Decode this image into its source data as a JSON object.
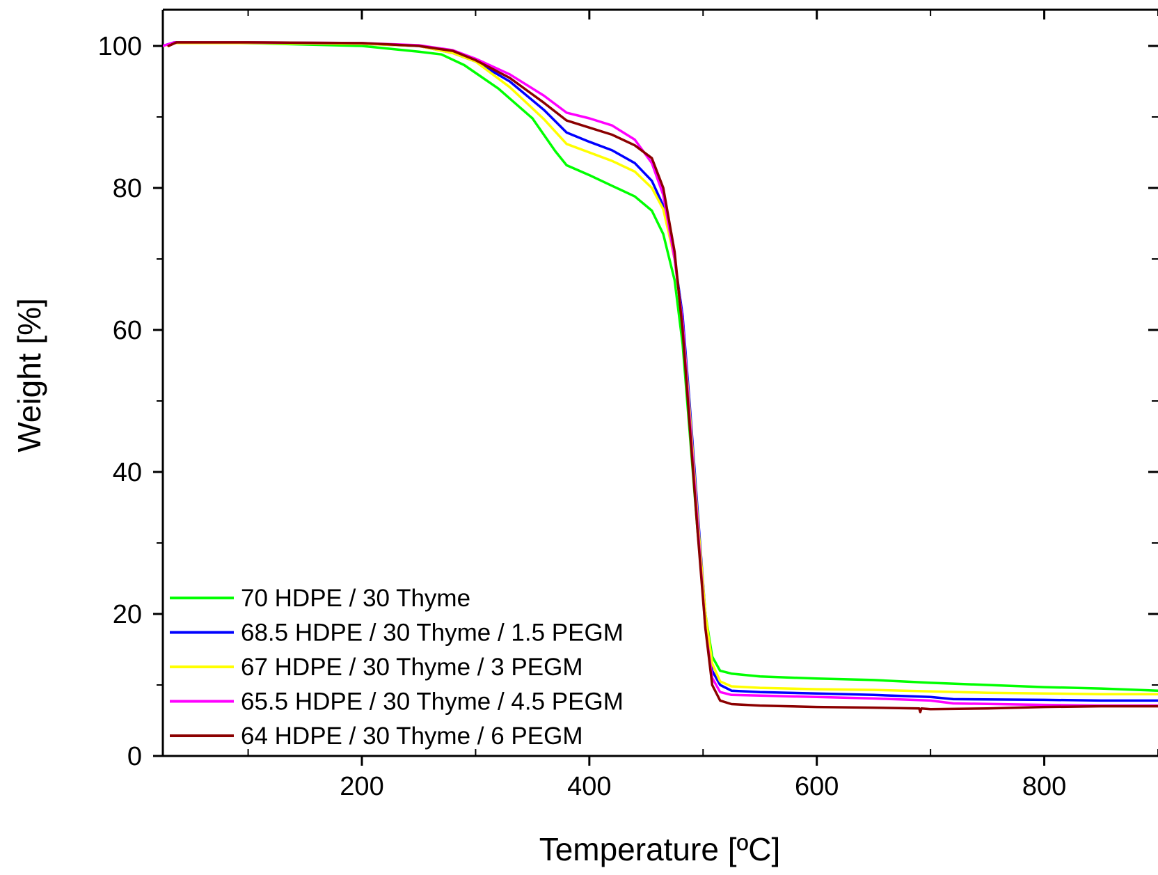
{
  "chart_data": {
    "type": "line",
    "xlabel": "Temperature [ºC]",
    "ylabel": "Weight [%]",
    "xlim": [
      25,
      900
    ],
    "ylim": [
      0,
      100
    ],
    "x_ticks": [
      200,
      400,
      600,
      800
    ],
    "y_ticks": [
      0,
      20,
      40,
      60,
      80,
      100
    ],
    "grid": false,
    "legend_position": "bottom-left",
    "series": [
      {
        "name": "70 HDPE / 30 Thyme",
        "color": "#00ff00",
        "points": [
          [
            25,
            100
          ],
          [
            35,
            100.5
          ],
          [
            100,
            100.4
          ],
          [
            200,
            100
          ],
          [
            250,
            99.2
          ],
          [
            270,
            98.8
          ],
          [
            290,
            97.3
          ],
          [
            320,
            94
          ],
          [
            350,
            89.8
          ],
          [
            370,
            85.2
          ],
          [
            380,
            83.2
          ],
          [
            400,
            81.8
          ],
          [
            420,
            80.3
          ],
          [
            440,
            78.8
          ],
          [
            455,
            76.8
          ],
          [
            465,
            73.5
          ],
          [
            475,
            67
          ],
          [
            482,
            58
          ],
          [
            488,
            46
          ],
          [
            495,
            32
          ],
          [
            502,
            20
          ],
          [
            508,
            14
          ],
          [
            515,
            12
          ],
          [
            525,
            11.6
          ],
          [
            550,
            11.2
          ],
          [
            600,
            10.9
          ],
          [
            650,
            10.7
          ],
          [
            700,
            10.3
          ],
          [
            750,
            10
          ],
          [
            800,
            9.7
          ],
          [
            850,
            9.5
          ],
          [
            900,
            9.2
          ]
        ]
      },
      {
        "name": "68.5 HDPE / 30 Thyme / 1.5 PEGM",
        "color": "#0000ff",
        "points": [
          [
            25,
            100
          ],
          [
            35,
            100.5
          ],
          [
            100,
            100.4
          ],
          [
            200,
            100.3
          ],
          [
            250,
            100
          ],
          [
            280,
            99
          ],
          [
            300,
            97.8
          ],
          [
            330,
            95
          ],
          [
            360,
            91
          ],
          [
            380,
            87.8
          ],
          [
            400,
            86.5
          ],
          [
            420,
            85.3
          ],
          [
            440,
            83.5
          ],
          [
            455,
            81
          ],
          [
            465,
            77.5
          ],
          [
            475,
            70
          ],
          [
            482,
            62
          ],
          [
            488,
            50
          ],
          [
            495,
            35
          ],
          [
            502,
            20
          ],
          [
            508,
            12
          ],
          [
            515,
            10
          ],
          [
            525,
            9.2
          ],
          [
            550,
            9
          ],
          [
            600,
            8.8
          ],
          [
            650,
            8.6
          ],
          [
            700,
            8.3
          ],
          [
            720,
            8
          ],
          [
            800,
            7.9
          ],
          [
            850,
            7.8
          ],
          [
            900,
            7.8
          ]
        ]
      },
      {
        "name": "67 HDPE / 30 Thyme / 3 PEGM",
        "color": "#ffff00",
        "points": [
          [
            25,
            100
          ],
          [
            35,
            100.4
          ],
          [
            100,
            100.4
          ],
          [
            200,
            100.3
          ],
          [
            250,
            100
          ],
          [
            280,
            99
          ],
          [
            300,
            97.8
          ],
          [
            330,
            94.2
          ],
          [
            360,
            89.7
          ],
          [
            380,
            86.2
          ],
          [
            400,
            85
          ],
          [
            420,
            83.8
          ],
          [
            440,
            82.3
          ],
          [
            455,
            80
          ],
          [
            465,
            77
          ],
          [
            475,
            70
          ],
          [
            482,
            61
          ],
          [
            488,
            49
          ],
          [
            495,
            34
          ],
          [
            502,
            20
          ],
          [
            508,
            13
          ],
          [
            515,
            10.5
          ],
          [
            525,
            9.8
          ],
          [
            550,
            9.6
          ],
          [
            600,
            9.4
          ],
          [
            650,
            9.3
          ],
          [
            700,
            9.1
          ],
          [
            750,
            8.9
          ],
          [
            800,
            8.8
          ],
          [
            850,
            8.7
          ],
          [
            900,
            8.7
          ]
        ]
      },
      {
        "name": "65.5 HDPE / 30 Thyme / 4.5 PEGM",
        "color": "#ff00ff",
        "points": [
          [
            25,
            100
          ],
          [
            35,
            100.5
          ],
          [
            100,
            100.5
          ],
          [
            200,
            100.4
          ],
          [
            250,
            100.1
          ],
          [
            280,
            99.4
          ],
          [
            300,
            98.2
          ],
          [
            330,
            96
          ],
          [
            360,
            93
          ],
          [
            380,
            90.6
          ],
          [
            400,
            89.8
          ],
          [
            420,
            88.8
          ],
          [
            440,
            86.8
          ],
          [
            455,
            83.5
          ],
          [
            465,
            79
          ],
          [
            475,
            70
          ],
          [
            482,
            61
          ],
          [
            488,
            48
          ],
          [
            495,
            33
          ],
          [
            502,
            18
          ],
          [
            508,
            11
          ],
          [
            515,
            9
          ],
          [
            525,
            8.6
          ],
          [
            550,
            8.5
          ],
          [
            600,
            8.3
          ],
          [
            650,
            8.1
          ],
          [
            700,
            7.8
          ],
          [
            720,
            7.4
          ],
          [
            800,
            7.2
          ],
          [
            850,
            7.1
          ],
          [
            900,
            7.1
          ]
        ]
      },
      {
        "name": "64 HDPE / 30 Thyme / 6 PEGM",
        "color": "#8b0000",
        "points": [
          [
            30,
            100
          ],
          [
            37,
            100.5
          ],
          [
            100,
            100.5
          ],
          [
            200,
            100.4
          ],
          [
            250,
            100
          ],
          [
            280,
            99.3
          ],
          [
            300,
            98
          ],
          [
            330,
            95.5
          ],
          [
            360,
            92
          ],
          [
            380,
            89.5
          ],
          [
            400,
            88.5
          ],
          [
            420,
            87.5
          ],
          [
            440,
            86
          ],
          [
            455,
            84.2
          ],
          [
            465,
            80
          ],
          [
            475,
            71
          ],
          [
            482,
            60
          ],
          [
            488,
            47
          ],
          [
            495,
            32
          ],
          [
            502,
            18
          ],
          [
            508,
            10
          ],
          [
            515,
            7.8
          ],
          [
            525,
            7.3
          ],
          [
            550,
            7.1
          ],
          [
            600,
            6.9
          ],
          [
            650,
            6.8
          ],
          [
            690,
            6.7
          ],
          [
            691,
            6.2
          ],
          [
            692,
            6.7
          ],
          [
            700,
            6.6
          ],
          [
            750,
            6.7
          ],
          [
            800,
            6.9
          ],
          [
            850,
            7
          ],
          [
            900,
            7
          ]
        ]
      }
    ]
  }
}
